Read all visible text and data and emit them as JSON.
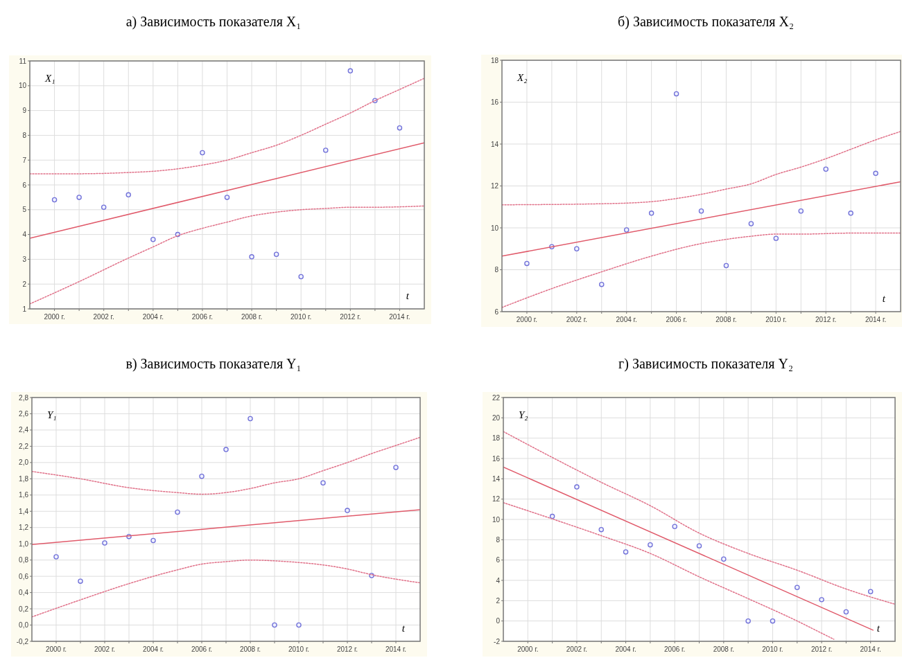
{
  "chart_data": [
    {
      "type": "scatter",
      "title": "а)  Зависимость показателя X₁",
      "annotations": [
        "X₁",
        "t"
      ],
      "grid": true,
      "xlim": [
        1999,
        2015
      ],
      "xticks": [
        {
          "value": 2000,
          "label": "2000 г."
        },
        {
          "value": 2001,
          "label": null
        },
        {
          "value": 2002,
          "label": "2002 г."
        },
        {
          "value": 2003,
          "label": null
        },
        {
          "value": 2004,
          "label": "2004 г."
        },
        {
          "value": 2005,
          "label": null
        },
        {
          "value": 2006,
          "label": "2006 г."
        },
        {
          "value": 2007,
          "label": null
        },
        {
          "value": 2008,
          "label": "2008 г."
        },
        {
          "value": 2009,
          "label": null
        },
        {
          "value": 2010,
          "label": "2010 г."
        },
        {
          "value": 2011,
          "label": null
        },
        {
          "value": 2012,
          "label": "2012 г."
        },
        {
          "value": 2013,
          "label": null
        },
        {
          "value": 2014,
          "label": "2014 г."
        }
      ],
      "ylim": [
        1,
        11
      ],
      "yticks": [
        1,
        2,
        3,
        4,
        5,
        6,
        7,
        8,
        9,
        10,
        11
      ],
      "series": [
        {
          "marker": "circle",
          "color": "#7070d8",
          "x": [
            2000,
            2001,
            2002,
            2003,
            2004,
            2005,
            2006,
            2007,
            2008,
            2009,
            2010,
            2011,
            2012,
            2013,
            2014
          ],
          "values": [
            5.4,
            5.5,
            5.1,
            5.6,
            3.8,
            4.0,
            7.3,
            5.5,
            3.1,
            3.2,
            2.3,
            7.4,
            10.6,
            9.4,
            8.3
          ]
        },
        {
          "type": "line",
          "line_style": "solid",
          "color": "#e05a6a",
          "x": [
            1999,
            2015
          ],
          "values": [
            3.85,
            7.7
          ]
        },
        {
          "type": "line",
          "line_style": "dotted",
          "color": "#e07088",
          "x": [
            1999,
            2001,
            2003,
            2004,
            2005,
            2006,
            2007,
            2008,
            2009,
            2010,
            2011,
            2012,
            2013,
            2014,
            2015
          ],
          "values": [
            6.45,
            6.45,
            6.5,
            6.55,
            6.65,
            6.8,
            7.0,
            7.3,
            7.6,
            8.0,
            8.45,
            8.9,
            9.4,
            9.85,
            10.3
          ]
        },
        {
          "type": "line",
          "line_style": "dotted",
          "color": "#e07088",
          "x": [
            1999,
            2001,
            2003,
            2004,
            2005,
            2006,
            2007,
            2008,
            2009,
            2010,
            2011,
            2012,
            2013,
            2015
          ],
          "values": [
            1.2,
            2.1,
            3.05,
            3.5,
            3.95,
            4.25,
            4.5,
            4.75,
            4.9,
            5.0,
            5.05,
            5.1,
            5.1,
            5.15
          ]
        }
      ]
    },
    {
      "type": "scatter",
      "title": "б) Зависимость показателя X₂",
      "annotations": [
        "X₂",
        "t"
      ],
      "grid": true,
      "xlim": [
        1999,
        2015
      ],
      "xticks": [
        {
          "value": 2000,
          "label": "2000 г."
        },
        {
          "value": 2001,
          "label": null
        },
        {
          "value": 2002,
          "label": "2002 г."
        },
        {
          "value": 2003,
          "label": null
        },
        {
          "value": 2004,
          "label": "2004 г."
        },
        {
          "value": 2005,
          "label": null
        },
        {
          "value": 2006,
          "label": "2006 г."
        },
        {
          "value": 2007,
          "label": null
        },
        {
          "value": 2008,
          "label": "2008 г."
        },
        {
          "value": 2009,
          "label": null
        },
        {
          "value": 2010,
          "label": "2010 г."
        },
        {
          "value": 2011,
          "label": null
        },
        {
          "value": 2012,
          "label": "2012 г."
        },
        {
          "value": 2013,
          "label": null
        },
        {
          "value": 2014,
          "label": "2014 г."
        }
      ],
      "ylim": [
        6,
        18
      ],
      "yticks": [
        6,
        8,
        10,
        12,
        14,
        16,
        18
      ],
      "series": [
        {
          "marker": "circle",
          "color": "#7070d8",
          "x": [
            2000,
            2001,
            2002,
            2003,
            2004,
            2005,
            2006,
            2007,
            2008,
            2009,
            2010,
            2011,
            2012,
            2013,
            2014
          ],
          "values": [
            8.3,
            9.1,
            9.0,
            7.3,
            9.9,
            10.7,
            16.4,
            10.8,
            8.2,
            10.2,
            9.5,
            10.8,
            12.8,
            10.7,
            12.6
          ]
        },
        {
          "type": "line",
          "line_style": "solid",
          "color": "#e05a6a",
          "x": [
            1999,
            2015
          ],
          "values": [
            8.65,
            12.2
          ]
        },
        {
          "type": "line",
          "line_style": "dotted",
          "color": "#e07088",
          "x": [
            1999,
            2003,
            2005,
            2006,
            2007,
            2008,
            2009,
            2010,
            2011,
            2012,
            2013,
            2014,
            2015
          ],
          "values": [
            11.1,
            11.15,
            11.25,
            11.4,
            11.6,
            11.85,
            12.1,
            12.55,
            12.9,
            13.3,
            13.75,
            14.2,
            14.6
          ]
        },
        {
          "type": "line",
          "line_style": "dotted",
          "color": "#e07088",
          "x": [
            1999,
            2001,
            2003,
            2005,
            2007,
            2008,
            2009,
            2010,
            2011,
            2013,
            2015
          ],
          "values": [
            6.2,
            7.1,
            7.9,
            8.65,
            9.25,
            9.45,
            9.6,
            9.7,
            9.7,
            9.75,
            9.75
          ]
        }
      ]
    },
    {
      "type": "scatter",
      "title": "в) Зависимость показателя Y₁",
      "annotations": [
        "Y₁",
        "t"
      ],
      "grid": true,
      "xlim": [
        1999,
        2015
      ],
      "xticks": [
        {
          "value": 2000,
          "label": "2000 г."
        },
        {
          "value": 2001,
          "label": null
        },
        {
          "value": 2002,
          "label": "2002 г."
        },
        {
          "value": 2003,
          "label": null
        },
        {
          "value": 2004,
          "label": "2004 г."
        },
        {
          "value": 2005,
          "label": null
        },
        {
          "value": 2006,
          "label": "2006 г."
        },
        {
          "value": 2007,
          "label": null
        },
        {
          "value": 2008,
          "label": "2008 г."
        },
        {
          "value": 2009,
          "label": null
        },
        {
          "value": 2010,
          "label": "2010 г."
        },
        {
          "value": 2011,
          "label": null
        },
        {
          "value": 2012,
          "label": "2012 г."
        },
        {
          "value": 2013,
          "label": null
        },
        {
          "value": 2014,
          "label": "2014 г."
        }
      ],
      "ylim": [
        -0.2,
        2.8
      ],
      "yticks": [
        {
          "value": -0.2,
          "label": "-0,2"
        },
        {
          "value": 0,
          "label": "0,0"
        },
        {
          "value": 0.2,
          "label": "0,2"
        },
        {
          "value": 0.4,
          "label": "0,4"
        },
        {
          "value": 0.6,
          "label": "0,6"
        },
        {
          "value": 0.8,
          "label": "0,8"
        },
        {
          "value": 1.0,
          "label": "1,0"
        },
        {
          "value": 1.2,
          "label": "1,2"
        },
        {
          "value": 1.4,
          "label": "1,4"
        },
        {
          "value": 1.6,
          "label": "1,6"
        },
        {
          "value": 1.8,
          "label": "1,8"
        },
        {
          "value": 2.0,
          "label": "2,0"
        },
        {
          "value": 2.2,
          "label": "2,2"
        },
        {
          "value": 2.4,
          "label": "2,4"
        },
        {
          "value": 2.6,
          "label": "2,6"
        },
        {
          "value": 2.8,
          "label": "2,8"
        }
      ],
      "series": [
        {
          "marker": "circle",
          "color": "#7070d8",
          "x": [
            2000,
            2001,
            2002,
            2003,
            2004,
            2005,
            2006,
            2007,
            2008,
            2009,
            2010,
            2011,
            2012,
            2013,
            2014
          ],
          "values": [
            0.84,
            0.54,
            1.01,
            1.09,
            1.04,
            1.39,
            1.83,
            2.16,
            2.54,
            0,
            0,
            1.75,
            1.41,
            0.61,
            1.94
          ]
        },
        {
          "type": "line",
          "line_style": "solid",
          "color": "#e05a6a",
          "x": [
            1999,
            2015
          ],
          "values": [
            0.99,
            1.42
          ]
        },
        {
          "type": "line",
          "line_style": "dotted",
          "color": "#e07088",
          "x": [
            1999,
            2001,
            2003,
            2005,
            2006,
            2007,
            2008,
            2009,
            2010,
            2011,
            2012,
            2013,
            2014,
            2015
          ],
          "values": [
            1.89,
            1.8,
            1.69,
            1.63,
            1.61,
            1.63,
            1.68,
            1.75,
            1.8,
            1.9,
            2.0,
            2.11,
            2.21,
            2.31
          ]
        },
        {
          "type": "line",
          "line_style": "dotted",
          "color": "#e07088",
          "x": [
            1999,
            2001,
            2003,
            2005,
            2006,
            2007,
            2008,
            2009,
            2010,
            2011,
            2012,
            2013,
            2015
          ],
          "values": [
            0.1,
            0.31,
            0.51,
            0.68,
            0.75,
            0.78,
            0.8,
            0.79,
            0.77,
            0.74,
            0.69,
            0.62,
            0.52
          ]
        }
      ]
    },
    {
      "type": "scatter",
      "title": "г) Зависимость показателя Y₂",
      "annotations": [
        "Y₂",
        "t"
      ],
      "grid": true,
      "xlim": [
        1999,
        2015
      ],
      "xticks": [
        {
          "value": 2000,
          "label": "2000 г."
        },
        {
          "value": 2001,
          "label": null
        },
        {
          "value": 2002,
          "label": "2002 г."
        },
        {
          "value": 2003,
          "label": null
        },
        {
          "value": 2004,
          "label": "2004 г."
        },
        {
          "value": 2005,
          "label": null
        },
        {
          "value": 2006,
          "label": "2006 г."
        },
        {
          "value": 2007,
          "label": null
        },
        {
          "value": 2008,
          "label": "2008 г."
        },
        {
          "value": 2009,
          "label": null
        },
        {
          "value": 2010,
          "label": "2010 г."
        },
        {
          "value": 2011,
          "label": null
        },
        {
          "value": 2012,
          "label": "2012 г."
        },
        {
          "value": 2013,
          "label": null
        },
        {
          "value": 2014,
          "label": "2014 г."
        }
      ],
      "ylim": [
        -2,
        22
      ],
      "yticks": [
        -2,
        0,
        2,
        4,
        6,
        8,
        10,
        12,
        14,
        16,
        18,
        20,
        22
      ],
      "series": [
        {
          "marker": "circle",
          "color": "#7070d8",
          "x": [
            2001,
            2002,
            2003,
            2004,
            2005,
            2006,
            2007,
            2008,
            2009,
            2010,
            2011,
            2012,
            2013,
            2014
          ],
          "values": [
            10.3,
            13.2,
            9.0,
            6.8,
            7.5,
            9.3,
            7.4,
            6.1,
            0,
            0,
            3.3,
            2.1,
            0.9,
            2.9
          ]
        },
        {
          "type": "line",
          "line_style": "solid",
          "color": "#e05a6a",
          "x": [
            1999,
            2014.1
          ],
          "values": [
            15.15,
            -0.9
          ]
        },
        {
          "type": "line",
          "line_style": "dotted",
          "color": "#e07088",
          "x": [
            1999,
            2001,
            2003,
            2005,
            2007,
            2009,
            2011,
            2013,
            2015
          ],
          "values": [
            18.65,
            16.1,
            13.65,
            11.35,
            8.65,
            6.65,
            5.0,
            3.15,
            1.65
          ]
        },
        {
          "type": "line",
          "line_style": "dotted",
          "color": "#e07088",
          "x": [
            1999,
            2001,
            2003,
            2005,
            2007,
            2009,
            2011,
            2012,
            2012.5
          ],
          "values": [
            11.65,
            10.05,
            8.4,
            6.65,
            4.35,
            2.2,
            0.0,
            -1.2,
            -1.8
          ]
        }
      ]
    }
  ]
}
